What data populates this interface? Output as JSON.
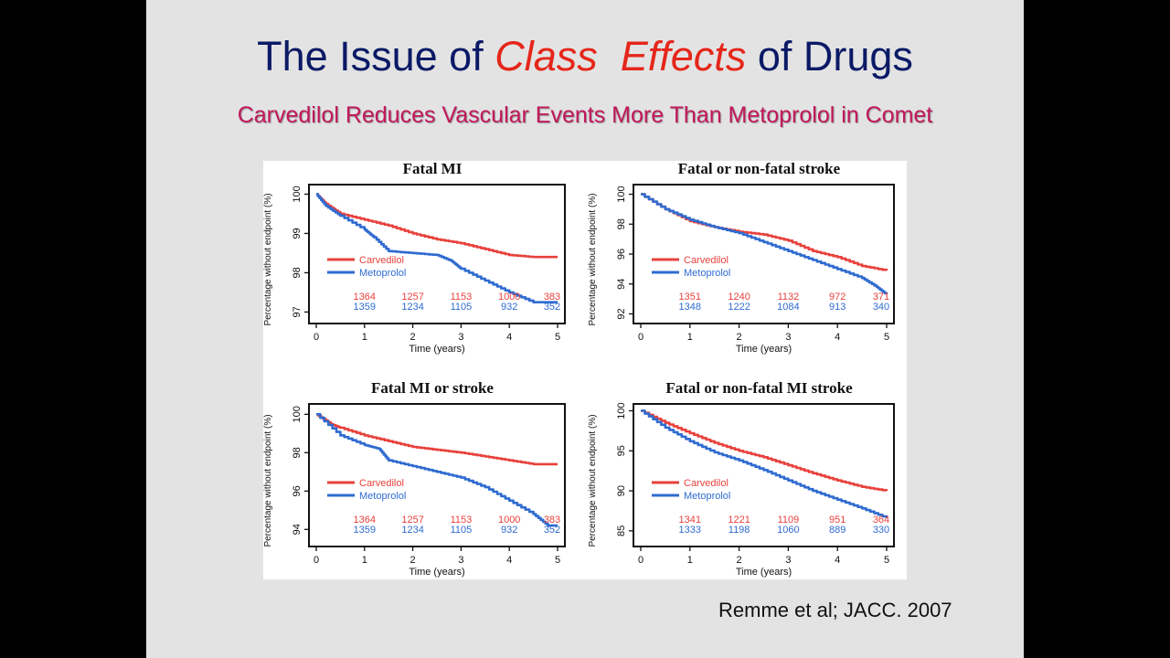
{
  "title": {
    "part1": "The Issue of ",
    "accent1": "Class",
    "sep": "  ",
    "accent2": "Effects",
    "part2": " of Drugs"
  },
  "subtitle": "Carvedilol Reduces Vascular Events More Than Metoprolol in Comet",
  "citation": "Remme et al; JACC. 2007",
  "colors": {
    "carvedilol": "#e8413c",
    "metoprolol": "#2f6bd0",
    "title": "#0b1a66",
    "accent": "#e5261a",
    "subtitle": "#c2185b"
  },
  "chart_data": [
    {
      "type": "line",
      "title": "Fatal MI",
      "xlabel": "Time (years)",
      "ylabel": "Percentage without endpoint (%)",
      "xlim": [
        0,
        5
      ],
      "ylim": [
        96.8,
        100.15
      ],
      "xticks": [
        0,
        1,
        2,
        3,
        4,
        5
      ],
      "yticks": [
        97,
        98,
        99,
        100
      ],
      "series": [
        {
          "name": "Carvedilol",
          "color": "#e8413c",
          "x": [
            0,
            0.2,
            0.5,
            1.0,
            1.5,
            2.0,
            2.5,
            3.0,
            3.5,
            4.0,
            4.5,
            5.0
          ],
          "y": [
            100,
            99.75,
            99.5,
            99.35,
            99.2,
            99.0,
            98.85,
            98.75,
            98.6,
            98.45,
            98.4,
            98.4
          ]
        },
        {
          "name": "Metoprolol",
          "color": "#2f6bd0",
          "x": [
            0,
            0.2,
            0.5,
            1.0,
            1.2,
            1.5,
            2.0,
            2.5,
            2.8,
            3.0,
            3.5,
            4.0,
            4.5,
            5.0
          ],
          "y": [
            100,
            99.7,
            99.45,
            99.1,
            98.9,
            98.55,
            98.5,
            98.45,
            98.3,
            98.1,
            97.8,
            97.5,
            97.25,
            97.25
          ]
        }
      ],
      "at_risk": {
        "x": [
          1,
          2,
          3,
          4,
          5
        ],
        "carvedilol": [
          "1364",
          "1257",
          "1153",
          "1000",
          "383"
        ],
        "metoprolol": [
          "1359",
          "1234",
          "1105",
          "932",
          "352"
        ]
      }
    },
    {
      "type": "line",
      "title": "Fatal or non-fatal stroke",
      "xlabel": "Time (years)",
      "ylabel": "Percentage without endpoint (%)",
      "xlim": [
        0,
        5
      ],
      "ylim": [
        91.6,
        100.4
      ],
      "xticks": [
        0,
        1,
        2,
        3,
        4,
        5
      ],
      "yticks": [
        92,
        94,
        96,
        98,
        100
      ],
      "series": [
        {
          "name": "Carvedilol",
          "color": "#e8413c",
          "x": [
            0,
            0.5,
            1.0,
            1.5,
            2.0,
            2.5,
            3.0,
            3.5,
            4.0,
            4.5,
            5.0
          ],
          "y": [
            100,
            99.0,
            98.2,
            97.8,
            97.5,
            97.3,
            96.9,
            96.2,
            95.8,
            95.2,
            94.9
          ]
        },
        {
          "name": "Metoprolol",
          "color": "#2f6bd0",
          "x": [
            0,
            0.5,
            1.0,
            1.5,
            2.0,
            2.5,
            3.0,
            3.5,
            4.0,
            4.5,
            4.8,
            5.0
          ],
          "y": [
            100,
            99.0,
            98.3,
            97.8,
            97.4,
            96.8,
            96.2,
            95.6,
            95.0,
            94.4,
            93.8,
            93.3
          ]
        }
      ],
      "at_risk": {
        "x": [
          1,
          2,
          3,
          4,
          5
        ],
        "carvedilol": [
          "1351",
          "1240",
          "1132",
          "972",
          "371"
        ],
        "metoprolol": [
          "1348",
          "1222",
          "1084",
          "913",
          "340"
        ]
      }
    },
    {
      "type": "line",
      "title": "Fatal MI or stroke",
      "xlabel": "Time (years)",
      "ylabel": "Percentage without endpoint (%)",
      "xlim": [
        0,
        5
      ],
      "ylim": [
        93.3,
        100.35
      ],
      "xticks": [
        0,
        1,
        2,
        3,
        4,
        5
      ],
      "yticks": [
        94,
        96,
        98,
        100
      ],
      "series": [
        {
          "name": "Carvedilol",
          "color": "#e8413c",
          "x": [
            0,
            0.3,
            0.5,
            1.0,
            1.5,
            2.0,
            2.5,
            3.0,
            3.5,
            4.0,
            4.5,
            5.0
          ],
          "y": [
            100,
            99.5,
            99.3,
            98.9,
            98.6,
            98.3,
            98.15,
            98.0,
            97.8,
            97.6,
            97.4,
            97.4
          ]
        },
        {
          "name": "Metoprolol",
          "color": "#2f6bd0",
          "x": [
            0,
            0.5,
            1.0,
            1.3,
            1.5,
            2.0,
            2.5,
            3.0,
            3.5,
            4.0,
            4.5,
            4.8,
            5.0
          ],
          "y": [
            100,
            98.9,
            98.4,
            98.2,
            97.6,
            97.3,
            97.0,
            96.7,
            96.2,
            95.5,
            94.8,
            94.2,
            94.2
          ]
        }
      ],
      "at_risk": {
        "x": [
          1,
          2,
          3,
          4,
          5
        ],
        "carvedilol": [
          "1364",
          "1257",
          "1153",
          "1000",
          "383"
        ],
        "metoprolol": [
          "1359",
          "1234",
          "1105",
          "932",
          "352"
        ]
      }
    },
    {
      "type": "line",
      "title": "Fatal or non-fatal MI stroke",
      "xlabel": "Time (years)",
      "ylabel": "Percentage without endpoint (%)",
      "xlim": [
        0,
        5
      ],
      "ylim": [
        83.5,
        100.4
      ],
      "xticks": [
        0,
        1,
        2,
        3,
        4,
        5
      ],
      "yticks": [
        85,
        90,
        95,
        100
      ],
      "series": [
        {
          "name": "Carvedilol",
          "color": "#e8413c",
          "x": [
            0,
            0.5,
            1.0,
            1.5,
            2.0,
            2.5,
            3.0,
            3.5,
            4.0,
            4.5,
            5.0
          ],
          "y": [
            100,
            98.5,
            97.2,
            96.0,
            95.0,
            94.2,
            93.2,
            92.2,
            91.3,
            90.5,
            90.0
          ]
        },
        {
          "name": "Metoprolol",
          "color": "#2f6bd0",
          "x": [
            0,
            0.5,
            1.0,
            1.5,
            2.0,
            2.5,
            3.0,
            3.5,
            4.0,
            4.5,
            5.0
          ],
          "y": [
            100,
            97.9,
            96.2,
            94.8,
            93.8,
            92.6,
            91.3,
            90.0,
            88.9,
            87.8,
            86.6
          ]
        }
      ],
      "at_risk": {
        "x": [
          1,
          2,
          3,
          4,
          5
        ],
        "carvedilol": [
          "1341",
          "1221",
          "1109",
          "951",
          "364"
        ],
        "metoprolol": [
          "1333",
          "1198",
          "1060",
          "889",
          "330"
        ]
      }
    }
  ]
}
